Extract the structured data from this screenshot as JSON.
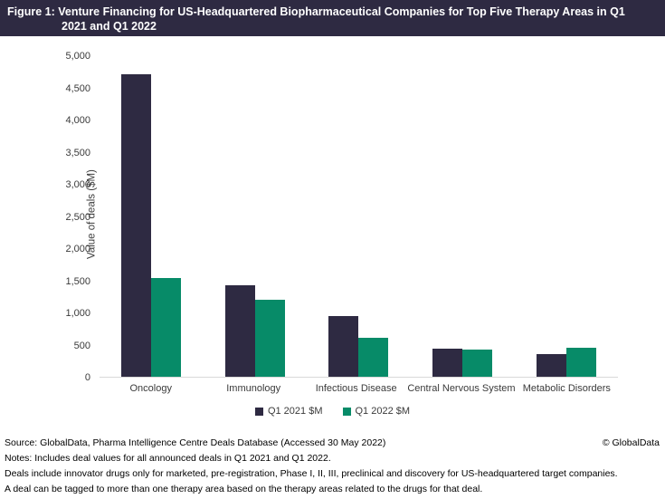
{
  "header": {
    "title_line1": "Figure 1: Venture Financing for US-Headquartered Biopharmaceutical Companies for Top Five Therapy Areas in Q1",
    "title_line2": "2021 and Q1 2022"
  },
  "chart_data": {
    "type": "bar",
    "title": "Venture Financing for US-Headquartered Biopharmaceutical Companies for Top Five Therapy Areas in Q1 2021 and Q1 2022",
    "ylabel": "Value of deals ($M)",
    "xlabel": "",
    "ylim": [
      0,
      5000
    ],
    "ytick_step": 500,
    "yticks": [
      "0",
      "500",
      "1,000",
      "1,500",
      "2,000",
      "2,500",
      "3,000",
      "3,500",
      "4,000",
      "4,500",
      "5,000"
    ],
    "grid": false,
    "legend_position": "bottom",
    "categories": [
      "Oncology",
      "Immunology",
      "Infectious Disease",
      "Central Nervous System",
      "Metabolic Disorders"
    ],
    "series": [
      {
        "name": "Q1 2021 $M",
        "color": "#2E2A42",
        "values": [
          4700,
          1420,
          940,
          440,
          355
        ]
      },
      {
        "name": "Q1 2022 $M",
        "color": "#078B68",
        "values": [
          1530,
          1200,
          600,
          420,
          450
        ]
      }
    ]
  },
  "footer": {
    "source": "Source: GlobalData, Pharma Intelligence Centre Deals Database (Accessed 30 May 2022)",
    "copyright": "© GlobalData",
    "notes": [
      "Notes: Includes deal values for all announced deals in Q1 2021 and Q1 2022.",
      "Deals include innovator drugs only for marketed, pre-registration, Phase I, II, III, preclinical and discovery for US-headquartered target companies.",
      "A deal can be tagged to more than one therapy area based on the therapy areas related to the drugs for that deal."
    ]
  },
  "colors": {
    "header_bg": "#2E2A42",
    "series_q1_2021": "#2E2A42",
    "series_q1_2022": "#078B68",
    "axis_line": "#d9d9d9",
    "title_text": "#ffffff"
  }
}
